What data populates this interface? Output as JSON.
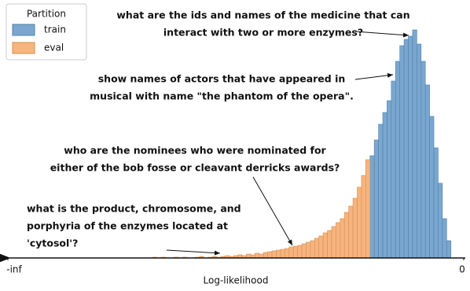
{
  "chart_data": {
    "type": "histogram",
    "x_label": "Log-likelihood",
    "xlim": [
      -107,
      0
    ],
    "xticks": [
      {
        "value": -107,
        "label": "-inf"
      },
      0
    ],
    "ylim": [
      0,
      300
    ],
    "legend_title": "Partition",
    "legend": "upper left",
    "series": [
      {
        "name": "train",
        "color": "#7aa7cf",
        "bins": [
          -22,
          -21,
          -20,
          -19,
          -18,
          -17,
          -16,
          -15,
          -14,
          -13,
          -12,
          -11,
          -10,
          -9,
          -8,
          -7,
          -6,
          -5,
          -4,
          -3
        ],
        "values": [
          130,
          150,
          170,
          185,
          200,
          225,
          250,
          270,
          278,
          282,
          290,
          272,
          250,
          220,
          180,
          140,
          95,
          50,
          22
        ]
      },
      {
        "name": "eval",
        "color": "#f6b47e",
        "bins": [
          -73,
          -72,
          -71,
          -70,
          -69,
          -68,
          -67,
          -66,
          -65,
          -64,
          -63,
          -62,
          -61,
          -60,
          -59,
          -58,
          -57,
          -56,
          -55,
          -54,
          -53,
          -52,
          -51,
          -50,
          -49,
          -48,
          -47,
          -46,
          -45,
          -44,
          -43,
          -42,
          -41,
          -40,
          -39,
          -38,
          -37,
          -36,
          -35,
          -34,
          -33,
          -32,
          -31,
          -30,
          -29,
          -28,
          -27,
          -26,
          -25,
          -24,
          -23,
          -22
        ],
        "values": [
          1,
          0,
          1,
          0,
          0,
          1,
          0,
          1,
          0,
          0,
          1,
          2,
          0,
          1,
          2,
          1,
          2,
          3,
          2,
          3,
          4,
          3,
          5,
          4,
          6,
          5,
          7,
          8,
          9,
          10,
          11,
          12,
          14,
          15,
          16,
          18,
          20,
          22,
          25,
          28,
          32,
          35,
          40,
          45,
          50,
          58,
          66,
          76,
          90,
          105,
          125
        ]
      }
    ],
    "annotations": [
      {
        "lines": [
          "what are the ids and names of the medicine that can",
          "interact with two or more enzymes?"
        ]
      },
      {
        "lines": [
          "show names of actors that have appeared in",
          "musical with name \"the phantom of the opera\"."
        ]
      },
      {
        "lines": [
          "who are the nominees who were nominated for",
          "either of the bob fosse or cleavant derricks awards?"
        ]
      },
      {
        "lines": [
          "what is the product, chromosome, and",
          "porphyria of the enzymes located at",
          "'cytosol'?"
        ]
      }
    ]
  }
}
